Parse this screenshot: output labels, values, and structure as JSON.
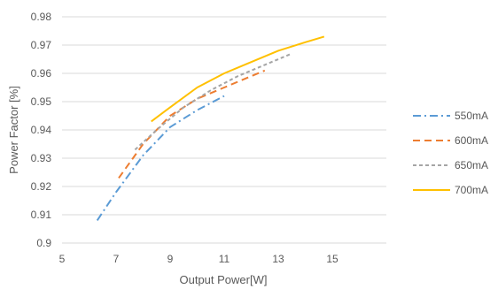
{
  "chart_data": {
    "type": "line",
    "title": "",
    "xlabel": "Output Power[W]",
    "ylabel": "Power Factor [%]",
    "xlim": [
      5,
      17
    ],
    "ylim": [
      0.9,
      0.98
    ],
    "xticks": [
      "5",
      "7",
      "9",
      "11",
      "13",
      "15"
    ],
    "yticks": [
      "0.9",
      "0.91",
      "0.92",
      "0.93",
      "0.94",
      "0.95",
      "0.96",
      "0.97",
      "0.98"
    ],
    "grid": true,
    "legend_position": "right",
    "series": [
      {
        "name": "550mA",
        "color": "#5B9BD5",
        "dash": "dash-dot",
        "points": [
          [
            6.3,
            0.908
          ],
          [
            7.0,
            0.918
          ],
          [
            8.0,
            0.931
          ],
          [
            9.0,
            0.941
          ],
          [
            10.0,
            0.947
          ],
          [
            11.0,
            0.952
          ]
        ]
      },
      {
        "name": "600mA",
        "color": "#ED7D31",
        "dash": "dashed",
        "points": [
          [
            7.1,
            0.923
          ],
          [
            8.0,
            0.935
          ],
          [
            9.0,
            0.945
          ],
          [
            10.0,
            0.951
          ],
          [
            11.0,
            0.955
          ],
          [
            12.0,
            0.959
          ],
          [
            12.5,
            0.961
          ]
        ]
      },
      {
        "name": "650mA",
        "color": "#A5A5A5",
        "dash": "dotted",
        "points": [
          [
            7.7,
            0.933
          ],
          [
            8.5,
            0.94
          ],
          [
            9.5,
            0.948
          ],
          [
            10.5,
            0.954
          ],
          [
            11.5,
            0.959
          ],
          [
            12.5,
            0.963
          ],
          [
            13.5,
            0.967
          ]
        ]
      },
      {
        "name": "700mA",
        "color": "#FFC000",
        "dash": "solid",
        "points": [
          [
            8.3,
            0.943
          ],
          [
            9.0,
            0.948
          ],
          [
            10.0,
            0.955
          ],
          [
            11.0,
            0.96
          ],
          [
            12.0,
            0.964
          ],
          [
            13.0,
            0.968
          ],
          [
            14.0,
            0.971
          ],
          [
            14.7,
            0.973
          ]
        ]
      }
    ]
  }
}
